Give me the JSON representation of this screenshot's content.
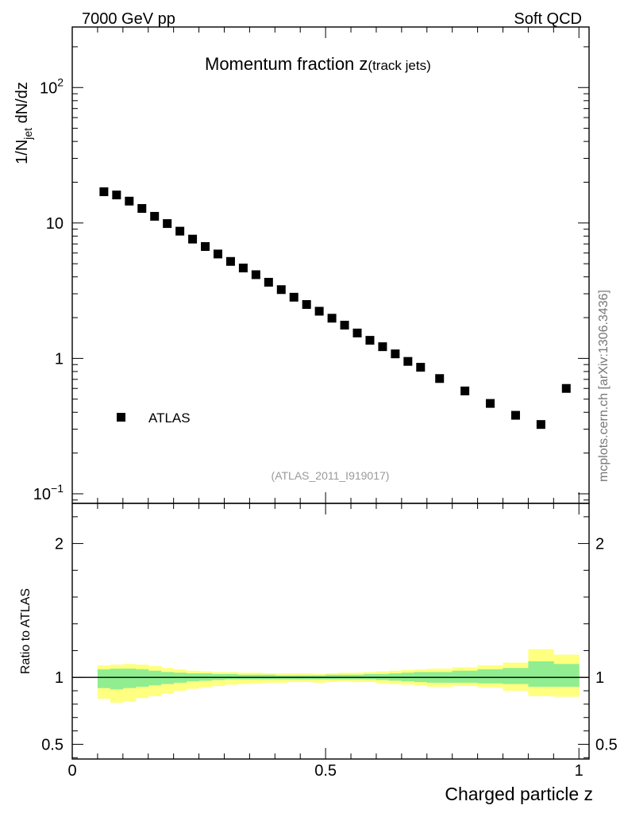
{
  "header": {
    "left_label": "7000 GeV pp",
    "right_label": "Soft QCD",
    "side_credit": "mcplots.cern.ch [arXiv:1306.3436]",
    "analysis_id": "(ATLAS_2011_I919017)"
  },
  "chart_data": [
    {
      "type": "scatter",
      "panel": "main",
      "title_main": "Momentum fraction z",
      "title_sub": "(track jets)",
      "ylabel_prefix": "1/N",
      "ylabel_subscript": "jet",
      "ylabel_suffix": " dN/dz",
      "xlabel": "Charged particle z",
      "y_scale": "log",
      "ylim": [
        0.085,
        280
      ],
      "xlim": [
        0,
        1.02
      ],
      "ytick_labels": [
        {
          "value": 0.1,
          "base": "10",
          "exp": "−1"
        },
        {
          "value": 1,
          "base": "1",
          "exp": ""
        },
        {
          "value": 10,
          "base": "10",
          "exp": ""
        },
        {
          "value": 100,
          "base": "10",
          "exp": "2"
        }
      ],
      "legend": {
        "entry": "ATLAS",
        "placement": "lower-left"
      },
      "series": [
        {
          "name": "ATLAS",
          "x": [
            0.0625,
            0.0875,
            0.1125,
            0.1375,
            0.1625,
            0.1875,
            0.2125,
            0.2375,
            0.2625,
            0.2875,
            0.3125,
            0.3375,
            0.3625,
            0.3875,
            0.4125,
            0.4375,
            0.4625,
            0.4875,
            0.5125,
            0.5375,
            0.5625,
            0.5875,
            0.6125,
            0.6375,
            0.6625,
            0.6875,
            0.725,
            0.775,
            0.825,
            0.875,
            0.925,
            0.975
          ],
          "y": [
            17.0,
            16.1,
            14.5,
            12.8,
            11.2,
            9.9,
            8.7,
            7.6,
            6.7,
            5.9,
            5.2,
            4.65,
            4.15,
            3.65,
            3.22,
            2.83,
            2.5,
            2.23,
            1.98,
            1.76,
            1.54,
            1.36,
            1.22,
            1.08,
            0.95,
            0.86,
            0.71,
            0.575,
            0.465,
            0.38,
            0.325,
            0.6
          ]
        }
      ]
    },
    {
      "type": "area",
      "panel": "ratio",
      "ylabel": "Ratio to ATLAS",
      "xlabel": "Charged particle z",
      "ylim": [
        0.39,
        2.3
      ],
      "ytick_labels": [
        "0.5",
        "1",
        "2"
      ],
      "xtick_labels": [
        "0",
        "0.5",
        "1"
      ],
      "reference_line": 1,
      "bin_edges": [
        0.05,
        0.075,
        0.1,
        0.125,
        0.15,
        0.175,
        0.2,
        0.225,
        0.25,
        0.275,
        0.3,
        0.325,
        0.35,
        0.375,
        0.4,
        0.425,
        0.45,
        0.475,
        0.5,
        0.525,
        0.55,
        0.575,
        0.6,
        0.625,
        0.65,
        0.675,
        0.7,
        0.75,
        0.8,
        0.85,
        0.9,
        0.95,
        1.0
      ],
      "inner_band": {
        "color": "#90ee90",
        "lo": [
          0.92,
          0.91,
          0.92,
          0.93,
          0.94,
          0.95,
          0.96,
          0.97,
          0.975,
          0.98,
          0.985,
          0.985,
          0.985,
          0.985,
          0.985,
          0.985,
          0.985,
          0.985,
          0.985,
          0.985,
          0.985,
          0.985,
          0.98,
          0.975,
          0.97,
          0.965,
          0.96,
          0.96,
          0.955,
          0.95,
          0.93,
          0.93
        ],
        "hi": [
          1.06,
          1.065,
          1.065,
          1.06,
          1.05,
          1.04,
          1.035,
          1.03,
          1.03,
          1.025,
          1.025,
          1.02,
          1.02,
          1.02,
          1.015,
          1.015,
          1.015,
          1.015,
          1.02,
          1.02,
          1.02,
          1.025,
          1.025,
          1.03,
          1.035,
          1.04,
          1.04,
          1.05,
          1.06,
          1.07,
          1.12,
          1.1
        ]
      },
      "outer_band": {
        "color": "#ffff80",
        "lo": [
          0.84,
          0.81,
          0.82,
          0.845,
          0.86,
          0.88,
          0.9,
          0.915,
          0.925,
          0.935,
          0.945,
          0.95,
          0.955,
          0.96,
          0.96,
          0.965,
          0.965,
          0.96,
          0.965,
          0.97,
          0.965,
          0.965,
          0.955,
          0.95,
          0.945,
          0.94,
          0.93,
          0.935,
          0.925,
          0.9,
          0.86,
          0.855
        ],
        "hi": [
          1.09,
          1.095,
          1.1,
          1.095,
          1.085,
          1.07,
          1.06,
          1.05,
          1.045,
          1.04,
          1.04,
          1.035,
          1.035,
          1.03,
          1.03,
          1.03,
          1.03,
          1.025,
          1.03,
          1.035,
          1.035,
          1.04,
          1.045,
          1.05,
          1.055,
          1.06,
          1.065,
          1.075,
          1.09,
          1.11,
          1.21,
          1.17
        ]
      }
    }
  ]
}
